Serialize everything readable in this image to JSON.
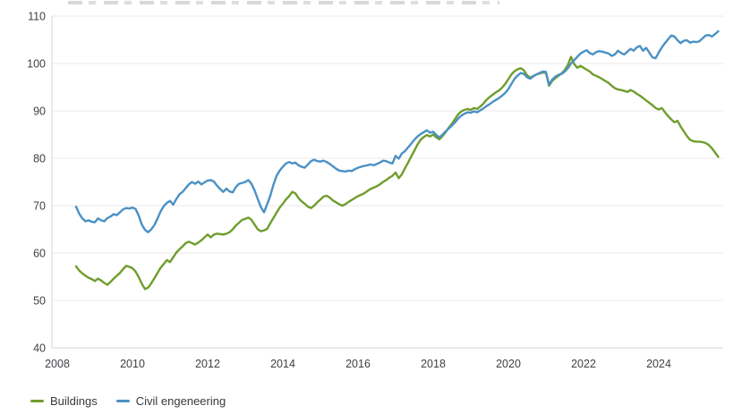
{
  "chart_data": {
    "type": "line",
    "title": "",
    "x_start": 2008.5,
    "x_step_years": 0.0833333,
    "x_ticks": [
      2008,
      2010,
      2012,
      2014,
      2016,
      2018,
      2020,
      2022,
      2024
    ],
    "y_ticks": [
      40,
      50,
      60,
      70,
      80,
      90,
      100,
      110
    ],
    "ylim": [
      40,
      110
    ],
    "xlim": [
      2007.85,
      2025.75
    ],
    "grid": "horizontal-only",
    "legend_position": "bottom-left",
    "series": [
      {
        "name": "Buildings",
        "color": "#6f9d2d",
        "values": [
          57.2,
          56.3,
          55.7,
          55.2,
          54.8,
          54.5,
          54.1,
          54.6,
          54.2,
          53.7,
          53.3,
          53.9,
          54.6,
          55.2,
          55.8,
          56.6,
          57.3,
          57.1,
          56.8,
          56.1,
          54.9,
          53.5,
          52.4,
          52.7,
          53.6,
          54.7,
          55.8,
          56.9,
          57.7,
          58.5,
          58.1,
          59.1,
          60.1,
          60.8,
          61.4,
          62.1,
          62.4,
          62.1,
          61.8,
          62.2,
          62.7,
          63.3,
          63.9,
          63.3,
          63.9,
          64.1,
          64.0,
          63.9,
          64.1,
          64.4,
          65.0,
          65.8,
          66.4,
          67.0,
          67.2,
          67.5,
          67.0,
          66.0,
          65.0,
          64.6,
          64.8,
          65.1,
          66.3,
          67.4,
          68.5,
          69.6,
          70.4,
          71.3,
          72.0,
          72.9,
          72.6,
          71.6,
          70.9,
          70.4,
          69.8,
          69.5,
          70.0,
          70.7,
          71.3,
          71.9,
          72.1,
          71.7,
          71.1,
          70.7,
          70.3,
          70.0,
          70.3,
          70.8,
          71.2,
          71.6,
          72.0,
          72.3,
          72.6,
          73.1,
          73.5,
          73.8,
          74.1,
          74.5,
          75.0,
          75.4,
          75.9,
          76.3,
          77.0,
          75.8,
          76.6,
          77.9,
          79.1,
          80.4,
          81.6,
          82.9,
          83.9,
          84.5,
          84.9,
          84.6,
          85.0,
          84.4,
          84.0,
          84.7,
          85.5,
          86.5,
          87.3,
          88.3,
          89.3,
          89.9,
          90.2,
          90.4,
          90.2,
          90.6,
          90.4,
          90.9,
          91.5,
          92.3,
          92.9,
          93.4,
          93.9,
          94.3,
          94.9,
          95.7,
          96.7,
          97.7,
          98.4,
          98.8,
          99.0,
          98.5,
          97.5,
          97.0,
          97.4,
          97.7,
          97.9,
          98.1,
          98.0,
          95.3,
          96.3,
          96.9,
          97.4,
          97.9,
          98.6,
          99.7,
          101.4,
          99.9,
          99.1,
          99.5,
          99.1,
          98.7,
          98.3,
          97.7,
          97.4,
          97.1,
          96.7,
          96.3,
          95.9,
          95.3,
          94.8,
          94.5,
          94.4,
          94.2,
          94.0,
          94.4,
          94.1,
          93.6,
          93.2,
          92.7,
          92.2,
          91.7,
          91.2,
          90.6,
          90.3,
          90.6,
          89.7,
          88.9,
          88.2,
          87.6,
          87.9,
          86.7,
          85.7,
          84.7,
          83.9,
          83.6,
          83.5,
          83.5,
          83.4,
          83.2,
          82.8,
          82.1,
          81.2,
          80.3
        ]
      },
      {
        "name": "Civil engeneering",
        "color": "#4b91c4",
        "values": [
          69.8,
          68.3,
          67.3,
          66.7,
          66.9,
          66.6,
          66.5,
          67.3,
          66.9,
          66.7,
          67.4,
          67.7,
          68.2,
          68.0,
          68.6,
          69.2,
          69.5,
          69.4,
          69.6,
          69.3,
          67.9,
          66.0,
          64.9,
          64.4,
          65.0,
          65.9,
          67.3,
          68.8,
          69.9,
          70.6,
          71.0,
          70.2,
          71.4,
          72.4,
          72.9,
          73.7,
          74.5,
          75.0,
          74.6,
          75.1,
          74.5,
          74.9,
          75.3,
          75.4,
          75.1,
          74.2,
          73.5,
          72.9,
          73.6,
          73.0,
          72.8,
          73.9,
          74.6,
          74.8,
          75.0,
          75.4,
          74.6,
          73.2,
          71.4,
          69.7,
          68.6,
          70.3,
          72.1,
          74.4,
          76.3,
          77.4,
          78.2,
          78.9,
          79.2,
          78.9,
          79.1,
          78.5,
          78.2,
          78.0,
          78.7,
          79.4,
          79.7,
          79.4,
          79.3,
          79.5,
          79.2,
          78.8,
          78.3,
          77.8,
          77.4,
          77.3,
          77.2,
          77.4,
          77.3,
          77.7,
          78.0,
          78.2,
          78.4,
          78.5,
          78.7,
          78.5,
          78.8,
          79.1,
          79.5,
          79.4,
          79.1,
          78.9,
          80.5,
          79.9,
          81.0,
          81.5,
          82.3,
          83.1,
          83.9,
          84.6,
          85.1,
          85.5,
          85.9,
          85.4,
          85.6,
          84.9,
          84.4,
          85.0,
          85.7,
          86.3,
          86.9,
          87.6,
          88.4,
          89.0,
          89.4,
          89.7,
          89.6,
          89.9,
          89.7,
          90.1,
          90.5,
          91.0,
          91.4,
          91.9,
          92.3,
          92.7,
          93.2,
          93.8,
          94.6,
          95.7,
          96.8,
          97.5,
          98.0,
          97.8,
          97.1,
          96.8,
          97.3,
          97.7,
          98.0,
          98.3,
          98.2,
          95.5,
          96.6,
          97.2,
          97.6,
          97.8,
          98.3,
          99.0,
          100.0,
          100.7,
          101.4,
          102.1,
          102.5,
          102.8,
          102.2,
          101.9,
          102.4,
          102.6,
          102.5,
          102.3,
          102.1,
          101.6,
          101.9,
          102.7,
          102.2,
          101.9,
          102.5,
          103.1,
          102.7,
          103.4,
          103.7,
          102.7,
          103.3,
          102.3,
          101.3,
          101.1,
          102.3,
          103.4,
          104.3,
          105.1,
          105.9,
          105.7,
          104.9,
          104.3,
          104.8,
          104.9,
          104.4,
          104.6,
          104.5,
          104.7,
          105.3,
          105.9,
          106.0,
          105.7,
          106.2,
          106.8
        ]
      }
    ],
    "colors": {
      "gridline": "#e9e9eb",
      "axis_line": "#d6d6da",
      "tick_text": "#404046",
      "legend_text": "#39393d"
    }
  }
}
